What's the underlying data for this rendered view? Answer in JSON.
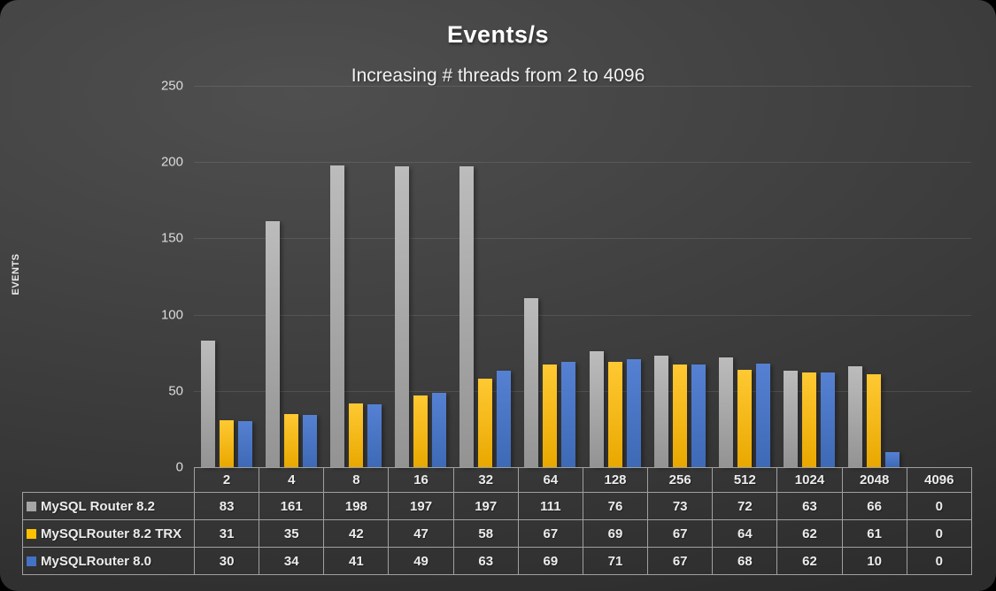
{
  "title": "Events/s",
  "subtitle": "Increasing # threads from 2 to 4096",
  "y_axis": {
    "label": "EVENTS",
    "ticks": [
      250,
      200,
      150,
      100,
      50,
      0
    ]
  },
  "chart_data": {
    "type": "bar",
    "title": "Events/s",
    "subtitle": "Increasing # threads from 2 to 4096",
    "categories": [
      "2",
      "4",
      "8",
      "16",
      "32",
      "64",
      "128",
      "256",
      "512",
      "1024",
      "2048",
      "4096"
    ],
    "series": [
      {
        "name": "MySQL Router 8.2",
        "color": "#a6a6a6",
        "values": [
          83,
          161,
          198,
          197,
          197,
          111,
          76,
          73,
          72,
          63,
          66,
          0
        ]
      },
      {
        "name": "MySQLRouter 8.2 TRX",
        "color": "#ffc000",
        "values": [
          31,
          35,
          42,
          47,
          58,
          67,
          69,
          67,
          64,
          62,
          61,
          0
        ]
      },
      {
        "name": "MySQLRouter 8.0",
        "color": "#4472c4",
        "values": [
          30,
          34,
          41,
          49,
          63,
          69,
          71,
          67,
          68,
          62,
          10,
          0
        ]
      }
    ],
    "xlabel": "",
    "ylabel": "EVENTS",
    "ylim": [
      0,
      250
    ],
    "grid": true,
    "legend_position": "table-left",
    "data_table_shown": true
  }
}
